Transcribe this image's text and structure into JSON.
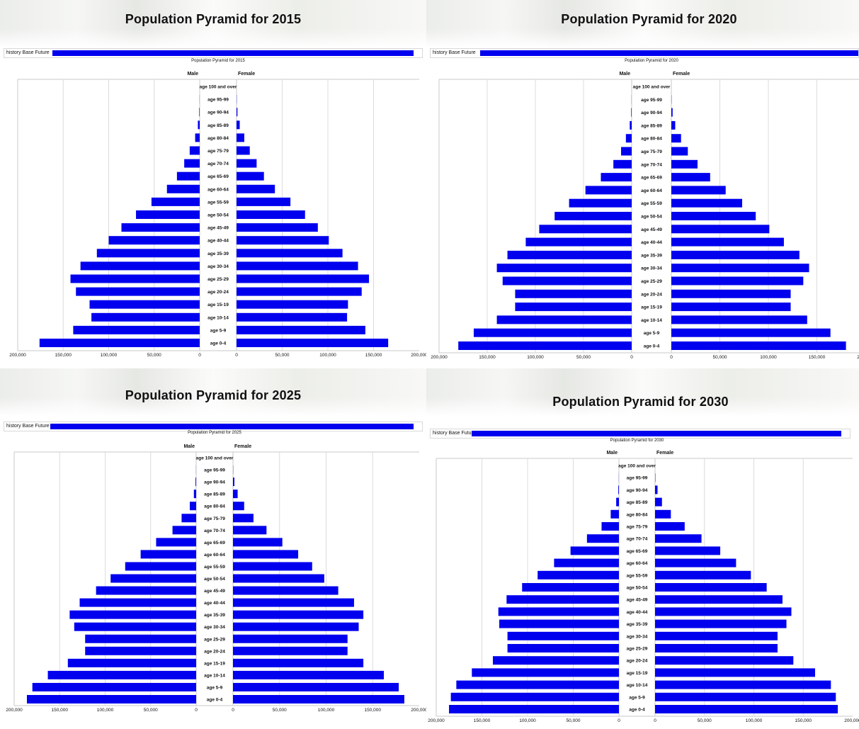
{
  "age_groups": [
    "age 0-4",
    "age 5-9",
    "age 10-14",
    "age 15-19",
    "age 20-24",
    "age 25-29",
    "age 30-34",
    "age 35-39",
    "age 40-44",
    "age 45-49",
    "age 50-54",
    "age 55-59",
    "age 60-64",
    "age 65-69",
    "age 70-74",
    "age 75-79",
    "age 80-84",
    "age 85-89",
    "age 90-94",
    "age 95-99",
    "age 100 and over"
  ],
  "tab_label": "history Base Future",
  "male_label": "Male",
  "female_label": "Female",
  "colors": {
    "bar": "#0000ee",
    "grid": "#dcdcdc",
    "frame": "#c8c8c8"
  },
  "chart_data": [
    {
      "type": "bar",
      "title": "Population Pyramid for 2015",
      "subtitle": "Population Pyramid for 2015",
      "male_ticks": [
        "200,000",
        "150,000",
        "100,000",
        "50,000",
        "0"
      ],
      "female_ticks": [
        "0",
        "50,000",
        "100,000",
        "150,000",
        "200,000"
      ],
      "xlim": [
        0,
        200000
      ],
      "series": [
        {
          "name": "Male",
          "values": [
            176000,
            139000,
            119000,
            121000,
            136000,
            142000,
            131000,
            113000,
            100000,
            86000,
            70000,
            53000,
            36000,
            25000,
            17000,
            11000,
            5000,
            2000,
            500,
            100,
            0
          ]
        },
        {
          "name": "Female",
          "values": [
            166000,
            141000,
            121000,
            122000,
            137000,
            145000,
            133000,
            116000,
            101000,
            89000,
            75000,
            59000,
            42000,
            30000,
            22000,
            14500,
            8500,
            3500,
            1000,
            200,
            0
          ]
        }
      ]
    },
    {
      "type": "bar",
      "title": "Population Pyramid for 2020",
      "subtitle": "Population Pyramid for 2020",
      "male_ticks": [
        "200,000",
        "150,000",
        "100,000",
        "50,000",
        "0"
      ],
      "female_ticks": [
        "0",
        "50,000",
        "100,000",
        "150,000",
        "200,000"
      ],
      "xlim": [
        0,
        200000
      ],
      "series": [
        {
          "name": "Male",
          "values": [
            180000,
            164000,
            140000,
            121000,
            121000,
            134000,
            140000,
            129000,
            110000,
            96000,
            80000,
            65000,
            48000,
            32000,
            19000,
            11000,
            6000,
            2000,
            500,
            100,
            0
          ]
        },
        {
          "name": "Female",
          "values": [
            180000,
            164000,
            140000,
            123000,
            123000,
            136000,
            142000,
            132000,
            116000,
            101000,
            87000,
            73000,
            56000,
            40000,
            27000,
            17000,
            10000,
            4000,
            1300,
            200,
            0
          ]
        }
      ]
    },
    {
      "type": "bar",
      "title": "Population Pyramid for 2025",
      "subtitle": "Population Pyramid for 2025",
      "male_ticks": [
        "200,000",
        "150,000",
        "100,000",
        "50,000",
        "0"
      ],
      "female_ticks": [
        "0",
        "50,000",
        "100,000",
        "150,000",
        "200,000"
      ],
      "xlim": [
        0,
        200000
      ],
      "series": [
        {
          "name": "Male",
          "values": [
            186000,
            180000,
            163000,
            141000,
            122000,
            122000,
            134000,
            139000,
            128000,
            110000,
            94000,
            78000,
            61000,
            44000,
            26000,
            16000,
            7000,
            2500,
            700,
            100,
            0
          ]
        },
        {
          "name": "Female",
          "values": [
            184000,
            178000,
            162000,
            140000,
            123000,
            123000,
            135000,
            140000,
            130000,
            113000,
            98000,
            85000,
            70000,
            53000,
            36000,
            22000,
            12000,
            5000,
            1500,
            200,
            0
          ]
        }
      ]
    },
    {
      "type": "bar",
      "title": "Population Pyramid for 2030",
      "subtitle": "Population Pyramid for 2030",
      "male_ticks": [
        "200,000",
        "150,000",
        "100,000",
        "50,000",
        "0"
      ],
      "female_ticks": [
        "0",
        "50,000",
        "100,000",
        "150,000",
        "200,000"
      ],
      "xlim": [
        0,
        200000
      ],
      "series": [
        {
          "name": "Male",
          "values": [
            186000,
            184000,
            178000,
            161000,
            138000,
            122000,
            122000,
            131000,
            132000,
            123000,
            106000,
            89000,
            71000,
            53000,
            35000,
            19000,
            9000,
            3000,
            700,
            100,
            0
          ]
        },
        {
          "name": "Female",
          "values": [
            185000,
            183000,
            178000,
            162000,
            140000,
            124000,
            124000,
            133000,
            138000,
            129000,
            113000,
            97000,
            82000,
            66000,
            47000,
            30000,
            16000,
            7000,
            2500,
            300,
            0
          ]
        }
      ]
    }
  ]
}
